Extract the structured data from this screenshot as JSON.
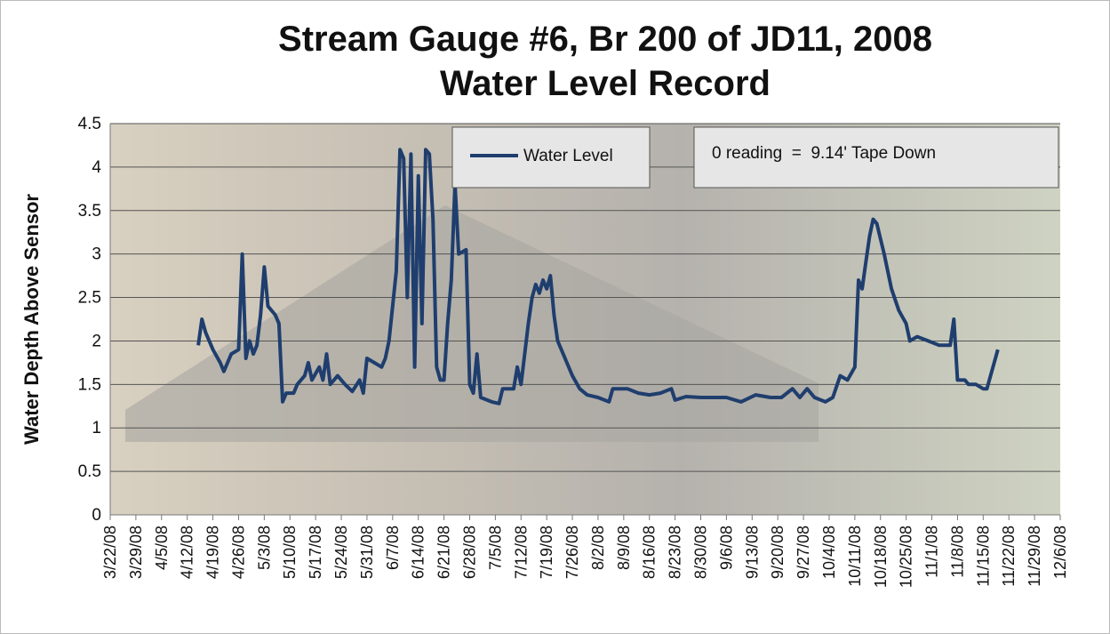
{
  "chart_data": {
    "type": "line",
    "title": "Stream Gauge #6, Br 200 of JD11, 2008 Water Level Record",
    "ylabel": "Water Depth Above Sensor",
    "annotation": "0 reading  =  9.14' Tape Down",
    "grid": true,
    "legend": "top",
    "ylim": [
      0,
      4.5
    ],
    "yticks": [
      0,
      0.5,
      1,
      1.5,
      2,
      2.5,
      3,
      3.5,
      4,
      4.5
    ],
    "xlim": [
      "3/22/08",
      "12/6/08"
    ],
    "xticks": [
      "3/22/08",
      "3/29/08",
      "4/5/08",
      "4/12/08",
      "4/19/08",
      "4/26/08",
      "5/3/08",
      "5/10/08",
      "5/17/08",
      "5/24/08",
      "5/31/08",
      "6/7/08",
      "6/14/08",
      "6/21/08",
      "6/28/08",
      "7/5/08",
      "7/12/08",
      "7/19/08",
      "7/26/08",
      "8/2/08",
      "8/9/08",
      "8/16/08",
      "8/23/08",
      "8/30/08",
      "9/6/08",
      "9/13/08",
      "9/20/08",
      "9/27/08",
      "10/4/08",
      "10/11/08",
      "10/18/08",
      "10/25/08",
      "11/1/08",
      "11/8/08",
      "11/15/08",
      "11/22/08",
      "11/29/08",
      "12/6/08"
    ],
    "x": [
      "4/15/08",
      "4/16/08",
      "4/17/08",
      "4/19/08",
      "4/21/08",
      "4/22/08",
      "4/24/08",
      "4/26/08",
      "4/27/08",
      "4/28/08",
      "4/29/08",
      "4/30/08",
      "5/1/08",
      "5/2/08",
      "5/3/08",
      "5/4/08",
      "5/6/08",
      "5/7/08",
      "5/8/08",
      "5/9/08",
      "5/11/08",
      "5/12/08",
      "5/14/08",
      "5/15/08",
      "5/16/08",
      "5/18/08",
      "5/19/08",
      "5/20/08",
      "5/21/08",
      "5/23/08",
      "5/25/08",
      "5/27/08",
      "5/29/08",
      "5/30/08",
      "5/31/08",
      "6/2/08",
      "6/4/08",
      "6/5/08",
      "6/6/08",
      "6/8/08",
      "6/9/08",
      "6/10/08",
      "6/11/08",
      "6/12/08",
      "6/13/08",
      "6/14/08",
      "6/15/08",
      "6/16/08",
      "6/17/08",
      "6/18/08",
      "6/19/08",
      "6/20/08",
      "6/21/08",
      "6/22/08",
      "6/23/08",
      "6/24/08",
      "6/25/08",
      "6/27/08",
      "6/28/08",
      "6/29/08",
      "6/30/08",
      "7/1/08",
      "7/4/08",
      "7/6/08",
      "7/7/08",
      "7/10/08",
      "7/11/08",
      "7/12/08",
      "7/14/08",
      "7/15/08",
      "7/16/08",
      "7/17/08",
      "7/18/08",
      "7/19/08",
      "7/20/08",
      "7/21/08",
      "7/22/08",
      "7/24/08",
      "7/26/08",
      "7/28/08",
      "7/30/08",
      "8/2/08",
      "8/5/08",
      "8/6/08",
      "8/10/08",
      "8/13/08",
      "8/16/08",
      "8/19/08",
      "8/22/08",
      "8/23/08",
      "8/26/08",
      "8/30/08",
      "9/3/08",
      "9/6/08",
      "9/10/08",
      "9/14/08",
      "9/18/08",
      "9/21/08",
      "9/24/08",
      "9/26/08",
      "9/28/08",
      "9/30/08",
      "10/3/08",
      "10/5/08",
      "10/7/08",
      "10/9/08",
      "10/11/08",
      "10/12/08",
      "10/13/08",
      "10/14/08",
      "10/15/08",
      "10/16/08",
      "10/17/08",
      "10/19/08",
      "10/21/08",
      "10/23/08",
      "10/25/08",
      "10/26/08",
      "10/28/08",
      "10/31/08",
      "11/3/08",
      "11/5/08",
      "11/6/08",
      "11/7/08",
      "11/8/08",
      "11/10/08",
      "11/11/08",
      "11/13/08",
      "11/15/08",
      "11/16/08",
      "11/17/08",
      "11/18/08",
      "11/19/08"
    ],
    "series": [
      {
        "name": "Water Level",
        "color": "#1f3e6e",
        "values": [
          1.95,
          2.25,
          2.1,
          1.9,
          1.75,
          1.65,
          1.85,
          1.9,
          3.0,
          1.8,
          2.0,
          1.85,
          1.95,
          2.3,
          2.85,
          2.4,
          2.3,
          2.2,
          1.3,
          1.4,
          1.4,
          1.5,
          1.6,
          1.75,
          1.55,
          1.7,
          1.55,
          1.85,
          1.5,
          1.6,
          1.5,
          1.42,
          1.55,
          1.4,
          1.8,
          1.75,
          1.7,
          1.8,
          2.0,
          2.8,
          4.2,
          4.1,
          2.5,
          4.15,
          1.7,
          3.9,
          2.2,
          4.2,
          4.15,
          3.4,
          1.7,
          1.55,
          1.55,
          2.2,
          2.7,
          3.8,
          3.0,
          3.05,
          1.5,
          1.4,
          1.85,
          1.35,
          1.3,
          1.28,
          1.45,
          1.45,
          1.7,
          1.5,
          2.2,
          2.5,
          2.65,
          2.55,
          2.7,
          2.6,
          2.75,
          2.3,
          2.0,
          1.8,
          1.6,
          1.45,
          1.38,
          1.35,
          1.3,
          1.45,
          1.45,
          1.4,
          1.38,
          1.4,
          1.45,
          1.32,
          1.36,
          1.35,
          1.35,
          1.35,
          1.3,
          1.38,
          1.35,
          1.35,
          1.45,
          1.35,
          1.45,
          1.35,
          1.3,
          1.35,
          1.6,
          1.55,
          1.7,
          2.7,
          2.6,
          2.9,
          3.2,
          3.4,
          3.35,
          3.0,
          2.6,
          2.35,
          2.2,
          2.0,
          2.05,
          2.0,
          1.95,
          1.95,
          1.95,
          2.25,
          1.55,
          1.55,
          1.5,
          1.5,
          1.45,
          1.45,
          1.6,
          1.75,
          1.9
        ]
      }
    ]
  }
}
